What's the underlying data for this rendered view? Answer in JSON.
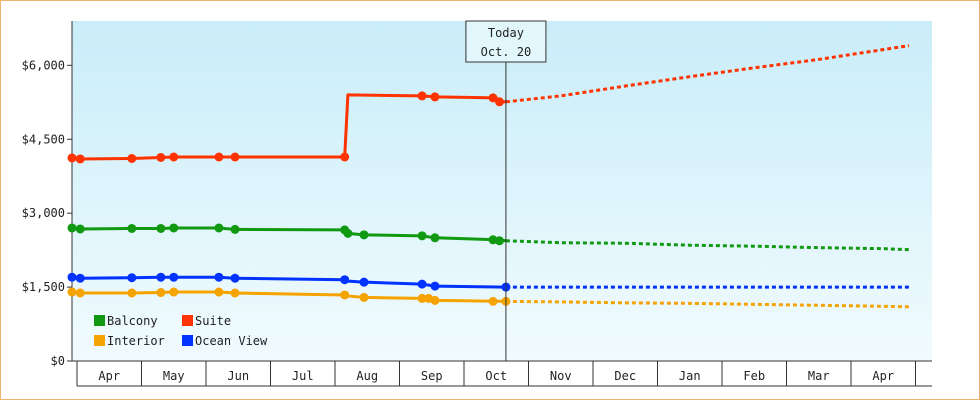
{
  "chart_data": {
    "type": "line",
    "today": {
      "line1": "Today",
      "line2": "Oct. 20"
    },
    "y_ticks": [
      {
        "value": 0,
        "label": "$0"
      },
      {
        "value": 1500,
        "label": "$1,500"
      },
      {
        "value": 3000,
        "label": "$3,000"
      },
      {
        "value": 4500,
        "label": "$4,500"
      },
      {
        "value": 6000,
        "label": "$6,000"
      }
    ],
    "ylim": [
      0,
      6900
    ],
    "x_months": [
      "Apr",
      "May",
      "Jun",
      "Jul",
      "Aug",
      "Sep",
      "Oct",
      "Nov",
      "Dec",
      "Jan",
      "Feb",
      "Mar",
      "Apr"
    ],
    "x_unit": "months since Apr 1",
    "today_x": 6.65,
    "grid": false,
    "legend_position": "bottom-left",
    "legend": [
      "Balcony",
      "Suite",
      "Interior",
      "Ocean View"
    ],
    "series": [
      {
        "name": "Suite",
        "color": "#ff3300",
        "history": [
          [
            -0.1,
            4120
          ],
          [
            0.05,
            4100
          ],
          [
            0.85,
            4110
          ],
          [
            1.3,
            4130
          ],
          [
            1.5,
            4140
          ],
          [
            2.2,
            4140
          ],
          [
            2.45,
            4140
          ],
          [
            4.15,
            4140
          ],
          [
            4.2,
            5400
          ],
          [
            5.35,
            5380
          ],
          [
            5.55,
            5360
          ],
          [
            6.5,
            5340
          ],
          [
            6.55,
            5260
          ],
          [
            6.65,
            5260
          ]
        ],
        "markers": [
          [
            -0.1,
            4120
          ],
          [
            0.05,
            4100
          ],
          [
            0.85,
            4110
          ],
          [
            1.3,
            4130
          ],
          [
            1.5,
            4140
          ],
          [
            2.2,
            4140
          ],
          [
            2.45,
            4140
          ],
          [
            4.15,
            4140
          ],
          [
            5.35,
            5380
          ],
          [
            5.55,
            5360
          ],
          [
            6.45,
            5340
          ],
          [
            6.55,
            5260
          ]
        ],
        "forecast": [
          [
            6.65,
            5260
          ],
          [
            7.5,
            5380
          ],
          [
            8.5,
            5580
          ],
          [
            9.5,
            5770
          ],
          [
            10.5,
            5950
          ],
          [
            11.5,
            6120
          ],
          [
            12.5,
            6320
          ],
          [
            12.9,
            6400
          ]
        ]
      },
      {
        "name": "Balcony",
        "color": "#119911",
        "history": [
          [
            -0.1,
            2700
          ],
          [
            0.05,
            2680
          ],
          [
            0.85,
            2690
          ],
          [
            1.3,
            2690
          ],
          [
            1.5,
            2700
          ],
          [
            2.2,
            2700
          ],
          [
            2.45,
            2670
          ],
          [
            4.15,
            2660
          ],
          [
            4.2,
            2590
          ],
          [
            4.45,
            2560
          ],
          [
            5.35,
            2540
          ],
          [
            5.55,
            2500
          ],
          [
            6.5,
            2460
          ],
          [
            6.65,
            2440
          ]
        ],
        "markers": [
          [
            -0.1,
            2700
          ],
          [
            0.05,
            2680
          ],
          [
            0.85,
            2690
          ],
          [
            1.3,
            2690
          ],
          [
            1.5,
            2700
          ],
          [
            2.2,
            2700
          ],
          [
            2.45,
            2670
          ],
          [
            4.15,
            2660
          ],
          [
            4.2,
            2590
          ],
          [
            4.45,
            2560
          ],
          [
            5.35,
            2540
          ],
          [
            5.55,
            2500
          ],
          [
            6.45,
            2460
          ],
          [
            6.55,
            2440
          ]
        ],
        "forecast": [
          [
            6.65,
            2440
          ],
          [
            7.5,
            2400
          ],
          [
            8.5,
            2390
          ],
          [
            9.5,
            2350
          ],
          [
            10.5,
            2330
          ],
          [
            11.5,
            2300
          ],
          [
            12.5,
            2280
          ],
          [
            12.9,
            2260
          ]
        ]
      },
      {
        "name": "Ocean View",
        "color": "#0033ff",
        "history": [
          [
            -0.1,
            1700
          ],
          [
            0.05,
            1680
          ],
          [
            0.85,
            1690
          ],
          [
            1.3,
            1700
          ],
          [
            1.5,
            1700
          ],
          [
            2.2,
            1700
          ],
          [
            2.45,
            1680
          ],
          [
            4.15,
            1650
          ],
          [
            4.2,
            1620
          ],
          [
            4.45,
            1600
          ],
          [
            5.35,
            1560
          ],
          [
            5.55,
            1520
          ],
          [
            6.65,
            1500
          ]
        ],
        "markers": [
          [
            -0.1,
            1700
          ],
          [
            0.05,
            1680
          ],
          [
            0.85,
            1690
          ],
          [
            1.3,
            1700
          ],
          [
            1.5,
            1700
          ],
          [
            2.2,
            1700
          ],
          [
            2.45,
            1680
          ],
          [
            4.15,
            1650
          ],
          [
            4.45,
            1600
          ],
          [
            5.35,
            1560
          ],
          [
            5.55,
            1520
          ],
          [
            6.65,
            1500
          ]
        ],
        "forecast": [
          [
            6.65,
            1500
          ],
          [
            12.9,
            1500
          ]
        ]
      },
      {
        "name": "Interior",
        "color": "#f5a300",
        "history": [
          [
            -0.1,
            1400
          ],
          [
            0.05,
            1380
          ],
          [
            0.85,
            1380
          ],
          [
            1.3,
            1390
          ],
          [
            1.5,
            1400
          ],
          [
            2.2,
            1400
          ],
          [
            2.45,
            1380
          ],
          [
            4.15,
            1340
          ],
          [
            4.2,
            1320
          ],
          [
            4.45,
            1290
          ],
          [
            5.35,
            1270
          ],
          [
            5.55,
            1230
          ],
          [
            6.65,
            1210
          ]
        ],
        "markers": [
          [
            -0.1,
            1400
          ],
          [
            0.05,
            1380
          ],
          [
            0.85,
            1380
          ],
          [
            1.3,
            1390
          ],
          [
            1.5,
            1400
          ],
          [
            2.2,
            1400
          ],
          [
            2.45,
            1380
          ],
          [
            4.15,
            1340
          ],
          [
            4.45,
            1290
          ],
          [
            5.35,
            1270
          ],
          [
            5.45,
            1270
          ],
          [
            5.55,
            1230
          ],
          [
            6.45,
            1210
          ],
          [
            6.65,
            1210
          ]
        ],
        "forecast": [
          [
            6.65,
            1210
          ],
          [
            7.5,
            1200
          ],
          [
            8.5,
            1180
          ],
          [
            9.5,
            1170
          ],
          [
            10.5,
            1150
          ],
          [
            11.5,
            1130
          ],
          [
            12.5,
            1110
          ],
          [
            12.9,
            1100
          ]
        ]
      }
    ]
  }
}
